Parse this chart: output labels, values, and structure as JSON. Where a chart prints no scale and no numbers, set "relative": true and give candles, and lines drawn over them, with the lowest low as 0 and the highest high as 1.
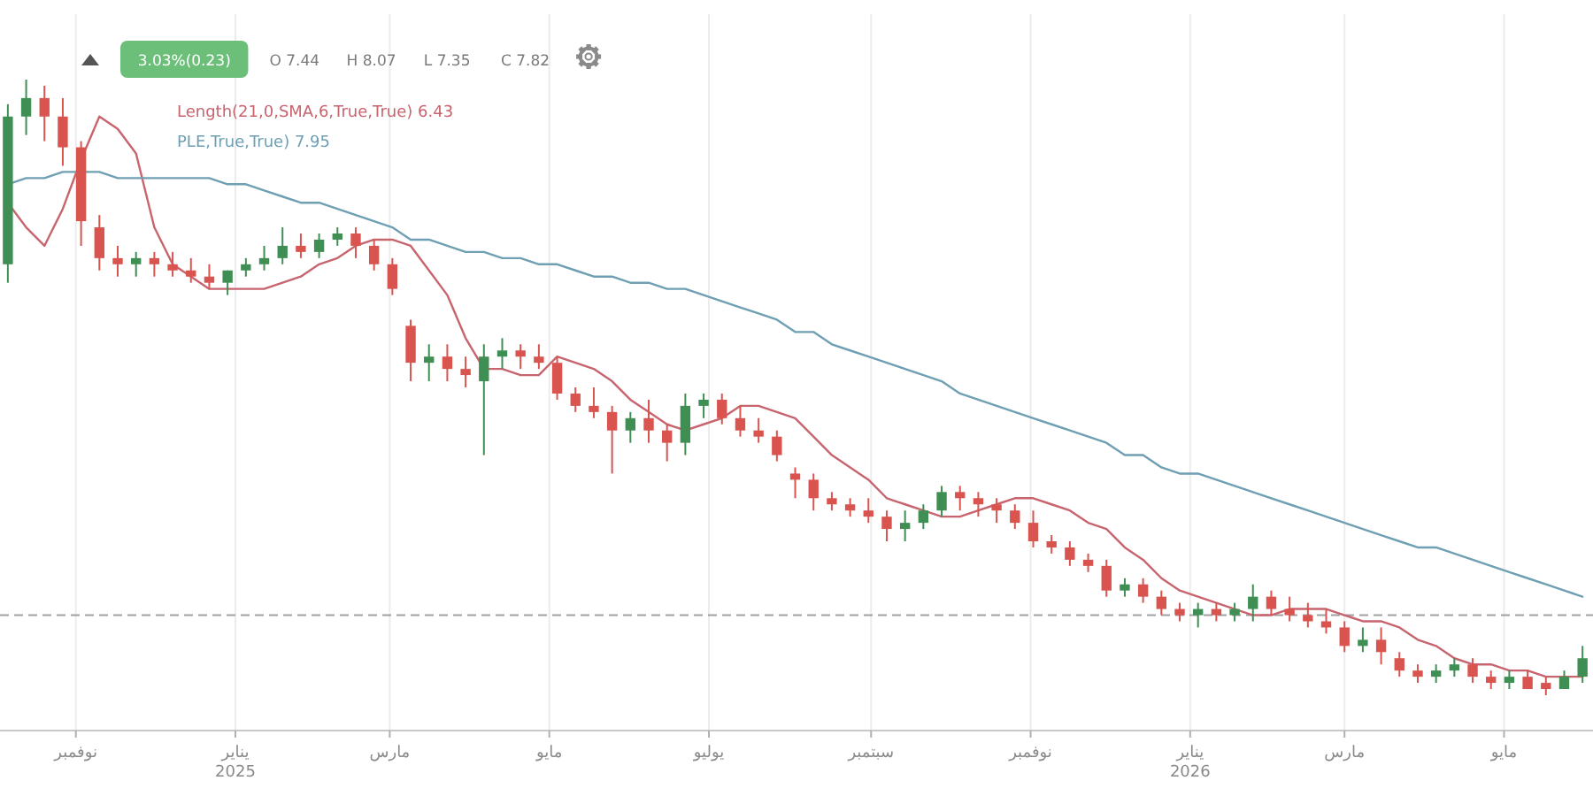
{
  "chart_data": {
    "type": "candlestick",
    "relative": true,
    "x": [
      "2024-10-06",
      "2024-10-13",
      "2024-10-20",
      "2024-10-27",
      "2024-11-03",
      "2024-11-10",
      "2024-11-17",
      "2024-11-24",
      "2024-12-01",
      "2024-12-08",
      "2024-12-15",
      "2024-12-22",
      "2024-12-29",
      "2025-01-05",
      "2025-01-12",
      "2025-01-19",
      "2025-01-26",
      "2025-02-02",
      "2025-02-09",
      "2025-02-16",
      "2025-02-23",
      "2025-03-02",
      "2025-03-09",
      "2025-03-16",
      "2025-03-23",
      "2025-03-30",
      "2025-04-06",
      "2025-04-13",
      "2025-04-20",
      "2025-04-27",
      "2025-05-04",
      "2025-05-11",
      "2025-05-18",
      "2025-05-25",
      "2025-06-01",
      "2025-06-08",
      "2025-06-15",
      "2025-06-22",
      "2025-06-29",
      "2025-07-06",
      "2025-07-13",
      "2025-07-20",
      "2025-07-27",
      "2025-08-03",
      "2025-08-10",
      "2025-08-17",
      "2025-08-24",
      "2025-08-31",
      "2025-09-07",
      "2025-09-14",
      "2025-09-21",
      "2025-09-28",
      "2025-10-05",
      "2025-10-12",
      "2025-10-19",
      "2025-10-26",
      "2025-11-02",
      "2025-11-09",
      "2025-11-16",
      "2025-11-23",
      "2025-11-30",
      "2025-12-07",
      "2025-12-14",
      "2025-12-21",
      "2025-12-28",
      "2026-01-04",
      "2026-01-11",
      "2026-01-18",
      "2026-01-25",
      "2026-02-01",
      "2026-02-08",
      "2026-02-15",
      "2026-02-22",
      "2026-03-01",
      "2026-03-08",
      "2026-03-15",
      "2026-03-22",
      "2026-03-29",
      "2026-04-05",
      "2026-04-12",
      "2026-04-19",
      "2026-04-26",
      "2026-05-03",
      "2026-05-10",
      "2026-05-17",
      "2026-05-24",
      "2026-05-31"
    ],
    "ohlc": [
      [
        0.7,
        0.96,
        0.67,
        0.94
      ],
      [
        0.94,
        1,
        0.91,
        0.97
      ],
      [
        0.97,
        0.99,
        0.9,
        0.94
      ],
      [
        0.94,
        0.97,
        0.86,
        0.89
      ],
      [
        0.89,
        0.9,
        0.73,
        0.77
      ],
      [
        0.76,
        0.78,
        0.69,
        0.71
      ],
      [
        0.71,
        0.73,
        0.68,
        0.7
      ],
      [
        0.7,
        0.72,
        0.68,
        0.71
      ],
      [
        0.71,
        0.72,
        0.68,
        0.7
      ],
      [
        0.7,
        0.72,
        0.68,
        0.69
      ],
      [
        0.69,
        0.71,
        0.67,
        0.68
      ],
      [
        0.68,
        0.7,
        0.66,
        0.67
      ],
      [
        0.67,
        0.69,
        0.65,
        0.69
      ],
      [
        0.69,
        0.71,
        0.68,
        0.7
      ],
      [
        0.7,
        0.73,
        0.69,
        0.71
      ],
      [
        0.71,
        0.76,
        0.7,
        0.73
      ],
      [
        0.73,
        0.75,
        0.71,
        0.72
      ],
      [
        0.72,
        0.75,
        0.71,
        0.74
      ],
      [
        0.74,
        0.76,
        0.73,
        0.75
      ],
      [
        0.75,
        0.76,
        0.71,
        0.73
      ],
      [
        0.73,
        0.74,
        0.69,
        0.7
      ],
      [
        0.7,
        0.71,
        0.65,
        0.66
      ],
      [
        0.6,
        0.61,
        0.51,
        0.54
      ],
      [
        0.54,
        0.57,
        0.51,
        0.55
      ],
      [
        0.55,
        0.57,
        0.51,
        0.53
      ],
      [
        0.53,
        0.55,
        0.5,
        0.52
      ],
      [
        0.51,
        0.57,
        0.39,
        0.55
      ],
      [
        0.55,
        0.58,
        0.53,
        0.56
      ],
      [
        0.56,
        0.57,
        0.53,
        0.55
      ],
      [
        0.55,
        0.57,
        0.53,
        0.54
      ],
      [
        0.54,
        0.55,
        0.48,
        0.49
      ],
      [
        0.49,
        0.5,
        0.46,
        0.47
      ],
      [
        0.47,
        0.5,
        0.45,
        0.46
      ],
      [
        0.46,
        0.47,
        0.36,
        0.43
      ],
      [
        0.43,
        0.46,
        0.41,
        0.45
      ],
      [
        0.45,
        0.48,
        0.41,
        0.43
      ],
      [
        0.43,
        0.44,
        0.38,
        0.41
      ],
      [
        0.41,
        0.49,
        0.39,
        0.47
      ],
      [
        0.47,
        0.49,
        0.45,
        0.48
      ],
      [
        0.48,
        0.49,
        0.44,
        0.45
      ],
      [
        0.45,
        0.47,
        0.42,
        0.43
      ],
      [
        0.43,
        0.45,
        0.41,
        0.42
      ],
      [
        0.42,
        0.43,
        0.38,
        0.39
      ],
      [
        0.36,
        0.37,
        0.32,
        0.35
      ],
      [
        0.35,
        0.36,
        0.3,
        0.32
      ],
      [
        0.32,
        0.33,
        0.3,
        0.31
      ],
      [
        0.31,
        0.32,
        0.29,
        0.3
      ],
      [
        0.3,
        0.32,
        0.28,
        0.29
      ],
      [
        0.29,
        0.3,
        0.25,
        0.27
      ],
      [
        0.27,
        0.3,
        0.25,
        0.28
      ],
      [
        0.28,
        0.31,
        0.27,
        0.3
      ],
      [
        0.3,
        0.34,
        0.29,
        0.33
      ],
      [
        0.33,
        0.34,
        0.3,
        0.32
      ],
      [
        0.32,
        0.33,
        0.29,
        0.31
      ],
      [
        0.31,
        0.32,
        0.28,
        0.3
      ],
      [
        0.3,
        0.31,
        0.27,
        0.28
      ],
      [
        0.28,
        0.3,
        0.24,
        0.25
      ],
      [
        0.25,
        0.26,
        0.23,
        0.24
      ],
      [
        0.24,
        0.25,
        0.21,
        0.22
      ],
      [
        0.22,
        0.23,
        0.2,
        0.21
      ],
      [
        0.21,
        0.22,
        0.16,
        0.17
      ],
      [
        0.17,
        0.19,
        0.16,
        0.18
      ],
      [
        0.18,
        0.19,
        0.15,
        0.16
      ],
      [
        0.16,
        0.17,
        0.13,
        0.14
      ],
      [
        0.14,
        0.15,
        0.12,
        0.13
      ],
      [
        0.13,
        0.15,
        0.11,
        0.14
      ],
      [
        0.14,
        0.15,
        0.12,
        0.13
      ],
      [
        0.13,
        0.15,
        0.12,
        0.14
      ],
      [
        0.14,
        0.18,
        0.12,
        0.16
      ],
      [
        0.16,
        0.17,
        0.13,
        0.14
      ],
      [
        0.14,
        0.16,
        0.12,
        0.13
      ],
      [
        0.13,
        0.15,
        0.11,
        0.12
      ],
      [
        0.12,
        0.14,
        0.1,
        0.11
      ],
      [
        0.11,
        0.12,
        0.07,
        0.08
      ],
      [
        0.08,
        0.11,
        0.07,
        0.09
      ],
      [
        0.09,
        0.11,
        0.05,
        0.07
      ],
      [
        0.06,
        0.07,
        0.03,
        0.04
      ],
      [
        0.04,
        0.05,
        0.02,
        0.03
      ],
      [
        0.03,
        0.05,
        0.02,
        0.04
      ],
      [
        0.04,
        0.06,
        0.03,
        0.05
      ],
      [
        0.05,
        0.06,
        0.02,
        0.03
      ],
      [
        0.03,
        0.04,
        0.01,
        0.02
      ],
      [
        0.02,
        0.04,
        0.01,
        0.03
      ],
      [
        0.03,
        0.04,
        0.01,
        0.01
      ],
      [
        0.02,
        0.03,
        0,
        0.01
      ],
      [
        0.01,
        0.04,
        0.01,
        0.03
      ],
      [
        0.03,
        0.08,
        0.02,
        0.06
      ]
    ],
    "colors": [
      "#3f8f55",
      "#3f8f55",
      "#d9534f",
      "#d9534f",
      "#d9534f",
      "#d9534f",
      "#d9534f",
      "#3f8f55",
      "#d9534f",
      "#d9534f",
      "#d9534f",
      "#d9534f",
      "#3f8f55",
      "#3f8f55",
      "#3f8f55",
      "#3f8f55",
      "#d9534f",
      "#3f8f55",
      "#3f8f55",
      "#d9534f",
      "#d9534f",
      "#d9534f",
      "#d9534f",
      "#3f8f55",
      "#d9534f",
      "#d9534f",
      "#3f8f55",
      "#3f8f55",
      "#d9534f",
      "#d9534f",
      "#d9534f",
      "#d9534f",
      "#d9534f",
      "#d9534f",
      "#3f8f55",
      "#d9534f",
      "#d9534f",
      "#3f8f55",
      "#3f8f55",
      "#d9534f",
      "#d9534f",
      "#d9534f",
      "#d9534f",
      "#d9534f",
      "#d9534f",
      "#d9534f",
      "#d9534f",
      "#d9534f",
      "#d9534f",
      "#3f8f55",
      "#3f8f55",
      "#3f8f55",
      "#d9534f",
      "#d9534f",
      "#d9534f",
      "#d9534f",
      "#d9534f",
      "#d9534f",
      "#d9534f",
      "#d9534f",
      "#d9534f",
      "#3f8f55",
      "#d9534f",
      "#d9534f",
      "#d9534f",
      "#3f8f55",
      "#d9534f",
      "#3f8f55",
      "#3f8f55",
      "#d9534f",
      "#d9534f",
      "#d9534f",
      "#d9534f",
      "#d9534f",
      "#3f8f55",
      "#d9534f",
      "#d9534f",
      "#d9534f",
      "#3f8f55",
      "#3f8f55",
      "#d9534f",
      "#d9534f",
      "#3f8f55",
      "#d9534f",
      "#d9534f",
      "#3f8f55",
      "#3f8f55"
    ],
    "series": [
      {
        "name": "Length(21,0,SMA,6,True,True) 6.43",
        "type": "line",
        "color": "#c8646e",
        "values": [
          0.8,
          0.76,
          0.73,
          0.79,
          0.87,
          0.94,
          0.92,
          0.88,
          0.76,
          0.7,
          0.68,
          0.66,
          0.66,
          0.66,
          0.66,
          0.67,
          0.68,
          0.7,
          0.71,
          0.73,
          0.74,
          0.74,
          0.73,
          0.69,
          0.65,
          0.58,
          0.53,
          0.53,
          0.52,
          0.52,
          0.55,
          0.54,
          0.53,
          0.51,
          0.48,
          0.46,
          0.44,
          0.43,
          0.44,
          0.45,
          0.47,
          0.47,
          0.46,
          0.45,
          0.42,
          0.39,
          0.37,
          0.35,
          0.32,
          0.31,
          0.3,
          0.29,
          0.29,
          0.3,
          0.31,
          0.32,
          0.32,
          0.31,
          0.3,
          0.28,
          0.27,
          0.24,
          0.22,
          0.19,
          0.17,
          0.16,
          0.15,
          0.14,
          0.13,
          0.13,
          0.14,
          0.14,
          0.14,
          0.13,
          0.12,
          0.12,
          0.11,
          0.09,
          0.08,
          0.06,
          0.05,
          0.05,
          0.04,
          0.04,
          0.03,
          0.03,
          0.03
        ]
      },
      {
        "name": "PLE,True,True) 7.95",
        "type": "line",
        "color": "#6f9fb3",
        "values": [
          0.83,
          0.84,
          0.84,
          0.85,
          0.85,
          0.85,
          0.84,
          0.84,
          0.84,
          0.84,
          0.84,
          0.84,
          0.83,
          0.83,
          0.82,
          0.81,
          0.8,
          0.8,
          0.79,
          0.78,
          0.77,
          0.76,
          0.74,
          0.74,
          0.73,
          0.72,
          0.72,
          0.71,
          0.71,
          0.7,
          0.7,
          0.69,
          0.68,
          0.68,
          0.67,
          0.67,
          0.66,
          0.66,
          0.65,
          0.64,
          0.63,
          0.62,
          0.61,
          0.59,
          0.59,
          0.57,
          0.56,
          0.55,
          0.54,
          0.53,
          0.52,
          0.51,
          0.49,
          0.48,
          0.47,
          0.46,
          0.45,
          0.44,
          0.43,
          0.42,
          0.41,
          0.39,
          0.39,
          0.37,
          0.36,
          0.36,
          0.35,
          0.34,
          0.33,
          0.32,
          0.31,
          0.3,
          0.29,
          0.28,
          0.27,
          0.26,
          0.25,
          0.24,
          0.24,
          0.23,
          0.22,
          0.21,
          0.2,
          0.19,
          0.18,
          0.17,
          0.16
        ]
      }
    ],
    "xlim": [
      "2024-10-03",
      "2026-06-04"
    ],
    "xticks": [
      {
        "value": "2024-11-01",
        "label": "نوفمبر"
      },
      {
        "value": "2025-01-01",
        "label": "يناير\n2025"
      },
      {
        "value": "2025-03-01",
        "label": "مارس"
      },
      {
        "value": "2025-05-01",
        "label": "مايو"
      },
      {
        "value": "2025-07-01",
        "label": "يوليو"
      },
      {
        "value": "2025-09-01",
        "label": "سبتمبر"
      },
      {
        "value": "2025-11-01",
        "label": "نوفمبر"
      },
      {
        "value": "2026-01-01",
        "label": "يناير\n2026"
      },
      {
        "value": "2026-03-01",
        "label": "مارس"
      },
      {
        "value": "2026-05-01",
        "label": "مايو"
      }
    ],
    "ref_lines": [
      {
        "axis": "y",
        "value": 0.13,
        "color": "#a0a0a0",
        "line_style": "dashed"
      }
    ],
    "annotations": [
      "3.03%(0.23)",
      "O 7.44",
      "H 8.07",
      "L 7.35",
      "C 7.82"
    ],
    "grid": "x",
    "legend": "top left"
  }
}
